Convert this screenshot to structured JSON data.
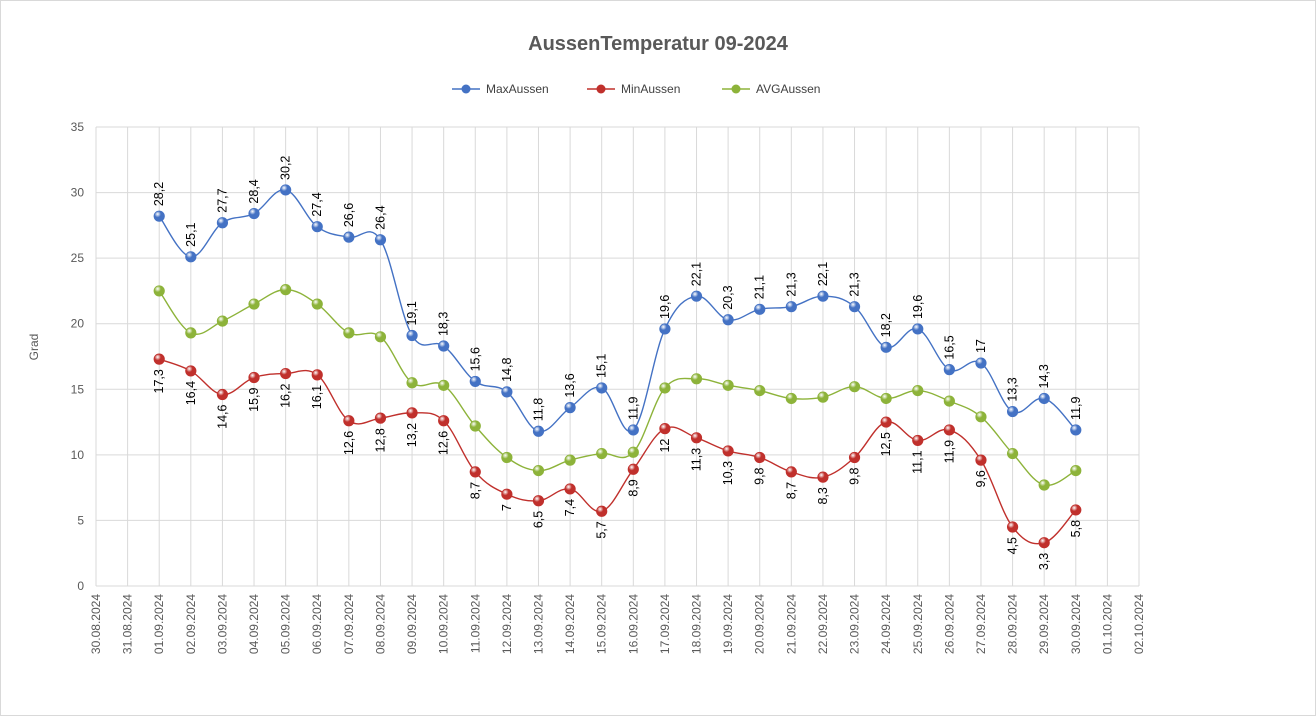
{
  "chart_data": {
    "type": "line",
    "title": "AussenTemperatur 09-2024",
    "xlabel": "",
    "ylabel": "Grad",
    "ylim": [
      0,
      35
    ],
    "yticks": [
      0,
      5,
      10,
      15,
      20,
      25,
      30,
      35
    ],
    "grid": true,
    "legend_position": "top",
    "smooth": true,
    "x_tick_labels": [
      "30.08.2024",
      "31.08.2024",
      "01.09.2024",
      "02.09.2024",
      "03.09.2024",
      "04.09.2024",
      "05.09.2024",
      "06.09.2024",
      "07.09.2024",
      "08.09.2024",
      "09.09.2024",
      "10.09.2024",
      "11.09.2024",
      "12.09.2024",
      "13.09.2024",
      "14.09.2024",
      "15.09.2024",
      "16.09.2024",
      "17.09.2024",
      "18.09.2024",
      "19.09.2024",
      "20.09.2024",
      "21.09.2024",
      "22.09.2024",
      "23.09.2024",
      "24.09.2024",
      "25.09.2024",
      "26.09.2024",
      "27.09.2024",
      "28.09.2024",
      "29.09.2024",
      "30.09.2024",
      "01.10.2024",
      "02.10.2024"
    ],
    "x_start_index": 2,
    "series": [
      {
        "name": "MaxAussen",
        "color": "#4472c4",
        "label_position": "above",
        "values": [
          28.2,
          25.1,
          27.7,
          28.4,
          30.2,
          27.4,
          26.6,
          26.4,
          19.1,
          18.3,
          15.6,
          14.8,
          11.8,
          13.6,
          15.1,
          11.9,
          19.6,
          22.1,
          20.3,
          21.1,
          21.3,
          22.1,
          21.3,
          18.2,
          19.6,
          16.5,
          17,
          13.3,
          14.3,
          11.9
        ],
        "labels": [
          "28,2",
          "25,1",
          "27,7",
          "28,4",
          "30,2",
          "27,4",
          "26,6",
          "26,4",
          "19,1",
          "18,3",
          "15,6",
          "14,8",
          "11,8",
          "13,6",
          "15,1",
          "11,9",
          "19,6",
          "22,1",
          "20,3",
          "21,1",
          "21,3",
          "22,1",
          "21,3",
          "18,2",
          "19,6",
          "16,5",
          "17",
          "13,3",
          "14,3",
          "11,9"
        ]
      },
      {
        "name": "MinAussen",
        "color": "#c0302c",
        "label_position": "below",
        "values": [
          17.3,
          16.4,
          14.6,
          15.9,
          16.2,
          16.1,
          12.6,
          12.8,
          13.2,
          12.6,
          8.7,
          7,
          6.5,
          7.4,
          5.7,
          8.9,
          12,
          11.3,
          10.3,
          9.8,
          8.7,
          8.3,
          9.8,
          12.5,
          11.1,
          11.9,
          9.6,
          4.5,
          3.3,
          5.8
        ],
        "labels": [
          "17,3",
          "16,4",
          "14,6",
          "15,9",
          "16,2",
          "16,1",
          "12,6",
          "12,8",
          "13,2",
          "12,6",
          "8,7",
          "7",
          "6,5",
          "7,4",
          "5,7",
          "8,9",
          "12",
          "11,3",
          "10,3",
          "9,8",
          "8,7",
          "8,3",
          "9,8",
          "12,5",
          "11,1",
          "11,9",
          "9,6",
          "4,5",
          "3,3",
          "5,8"
        ]
      },
      {
        "name": "AVGAussen",
        "color": "#8db33a",
        "label_position": "none",
        "values": [
          22.5,
          19.3,
          20.2,
          21.5,
          22.6,
          21.5,
          19.3,
          19.0,
          15.5,
          15.3,
          12.2,
          9.8,
          8.8,
          9.6,
          10.1,
          10.2,
          15.1,
          15.8,
          15.3,
          14.9,
          14.3,
          14.4,
          15.2,
          14.3,
          14.9,
          14.1,
          12.9,
          10.1,
          7.7,
          8.8
        ]
      }
    ]
  }
}
